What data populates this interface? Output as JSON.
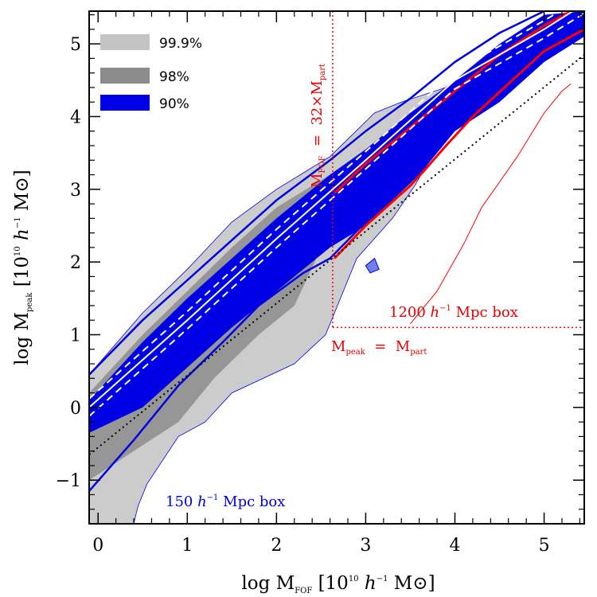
{
  "chart_data": {
    "type": "area",
    "xlabel": {
      "pre": "log M",
      "sub": "FOF",
      "post": " [10",
      "sup": "10",
      "it": "h",
      "sup2": "−1",
      "post2": " M",
      "sym": "⊙",
      "close": "]"
    },
    "ylabel": {
      "pre": "log M",
      "sub": "peak",
      "post": " [10",
      "sup": "10",
      "it": "h",
      "sup2": "−1",
      "post2": " M",
      "sym": "⊙",
      "close": "]"
    },
    "xlim": [
      -0.1,
      5.45
    ],
    "ylim": [
      -1.6,
      5.45
    ],
    "xticks": [
      0,
      1,
      2,
      3,
      4,
      5
    ],
    "yticks": [
      -1,
      0,
      1,
      2,
      3,
      4,
      5
    ],
    "xtick_labels": [
      "0",
      "1",
      "2",
      "3",
      "4",
      "5"
    ],
    "ytick_labels": [
      "−1",
      "0",
      "1",
      "2",
      "3",
      "4",
      "5"
    ],
    "legend": {
      "placement": "top-left",
      "entries": [
        {
          "label": "99.9%",
          "color": "#c4c4c4"
        },
        {
          "label": "98%",
          "color": "#8c8c8c"
        },
        {
          "label": "90%",
          "color": "#0000e6"
        }
      ]
    },
    "colors": {
      "light": "#cccccc",
      "mid": "#969696",
      "blue": "#0000e6",
      "red": "#ff0000",
      "white": "#ffffff"
    },
    "regions": {
      "gray999": [
        [
          -0.1,
          0.45
        ],
        [
          0.5,
          1.3
        ],
        [
          1.0,
          1.9
        ],
        [
          1.5,
          2.55
        ],
        [
          2.0,
          3.0
        ],
        [
          2.6,
          3.45
        ],
        [
          3.1,
          4.05
        ],
        [
          3.4,
          4.2
        ],
        [
          3.9,
          4.4
        ],
        [
          4.1,
          4.4
        ],
        [
          4.0,
          4.0
        ],
        [
          3.55,
          3.05
        ],
        [
          3.3,
          2.6
        ],
        [
          2.9,
          2.05
        ],
        [
          2.55,
          1.0
        ],
        [
          2.2,
          0.6
        ],
        [
          1.5,
          0.2
        ],
        [
          1.2,
          -0.2
        ],
        [
          0.9,
          -0.4
        ],
        [
          0.55,
          -1.05
        ],
        [
          0.45,
          -1.35
        ],
        [
          0.4,
          -1.6
        ],
        [
          -0.1,
          -1.6
        ]
      ],
      "gray98": [
        [
          -0.1,
          0.2
        ],
        [
          0.5,
          1.0
        ],
        [
          1.0,
          1.6
        ],
        [
          1.5,
          2.2
        ],
        [
          2.0,
          2.75
        ],
        [
          2.6,
          3.2
        ],
        [
          3.0,
          3.55
        ],
        [
          3.5,
          4.0
        ],
        [
          3.6,
          3.8
        ],
        [
          3.1,
          3.0
        ],
        [
          2.6,
          2.45
        ],
        [
          2.2,
          1.4
        ],
        [
          1.8,
          1.0
        ],
        [
          1.3,
          0.4
        ],
        [
          0.9,
          -0.2
        ],
        [
          0.4,
          -0.6
        ],
        [
          -0.1,
          -1.0
        ]
      ],
      "blue90": [
        [
          -0.1,
          0.1
        ],
        [
          0.5,
          0.9
        ],
        [
          1.0,
          1.5
        ],
        [
          1.5,
          2.05
        ],
        [
          2.0,
          2.6
        ],
        [
          2.6,
          3.2
        ],
        [
          3.0,
          3.55
        ],
        [
          3.5,
          4.05
        ],
        [
          4.0,
          4.5
        ],
        [
          4.5,
          5.0
        ],
        [
          5.0,
          5.4
        ],
        [
          5.45,
          5.45
        ],
        [
          5.45,
          5.1
        ],
        [
          5.0,
          4.75
        ],
        [
          4.5,
          4.2
        ],
        [
          4.0,
          3.8
        ],
        [
          3.6,
          3.2
        ],
        [
          3.0,
          2.5
        ],
        [
          2.6,
          2.2
        ],
        [
          2.0,
          1.6
        ],
        [
          1.5,
          1.1
        ],
        [
          1.0,
          0.55
        ],
        [
          0.5,
          0.0
        ],
        [
          -0.1,
          -0.35
        ]
      ],
      "blue_outline_upper": [
        [
          -0.1,
          0.45
        ],
        [
          0.5,
          1.2
        ],
        [
          1.0,
          1.75
        ],
        [
          1.5,
          2.3
        ],
        [
          2.0,
          2.85
        ],
        [
          2.6,
          3.4
        ],
        [
          3.0,
          3.8
        ],
        [
          3.5,
          4.25
        ],
        [
          4.0,
          4.75
        ],
        [
          4.5,
          5.15
        ],
        [
          5.0,
          5.45
        ]
      ],
      "blue_outline_lower": [
        [
          -0.1,
          -1.15
        ],
        [
          0.4,
          -0.45
        ],
        [
          0.9,
          0.3
        ],
        [
          1.4,
          0.9
        ],
        [
          1.8,
          1.4
        ],
        [
          2.3,
          1.85
        ],
        [
          2.6,
          2.05
        ],
        [
          3.0,
          2.55
        ],
        [
          3.5,
          3.1
        ],
        [
          3.7,
          3.6
        ],
        [
          4.0,
          3.85
        ],
        [
          4.5,
          4.35
        ],
        [
          5.0,
          4.85
        ]
      ],
      "blue_island": [
        [
          3.0,
          1.95
        ],
        [
          3.1,
          2.05
        ],
        [
          3.15,
          1.9
        ],
        [
          3.05,
          1.85
        ]
      ],
      "red90": [
        [
          2.65,
          2.05
        ],
        [
          3.0,
          2.5
        ],
        [
          3.5,
          3.05
        ],
        [
          3.65,
          3.25
        ],
        [
          3.9,
          3.6
        ],
        [
          4.2,
          4.0
        ],
        [
          4.6,
          4.45
        ],
        [
          5.0,
          4.9
        ],
        [
          5.45,
          5.2
        ]
      ],
      "red90_upper": [
        [
          2.65,
          2.95
        ],
        [
          3.0,
          3.35
        ],
        [
          3.5,
          3.85
        ],
        [
          4.0,
          4.35
        ],
        [
          4.5,
          4.85
        ],
        [
          5.0,
          5.25
        ],
        [
          5.3,
          5.45
        ]
      ],
      "red_thin": [
        [
          3.5,
          1.15
        ],
        [
          3.8,
          1.6
        ],
        [
          4.1,
          2.25
        ],
        [
          4.3,
          2.75
        ],
        [
          4.5,
          3.1
        ],
        [
          4.7,
          3.45
        ],
        [
          4.9,
          3.85
        ],
        [
          5.0,
          4.05
        ],
        [
          5.2,
          4.35
        ],
        [
          5.3,
          4.45
        ]
      ],
      "median": [
        [
          -0.1,
          0.0
        ],
        [
          1.0,
          1.2
        ],
        [
          2.0,
          2.32
        ],
        [
          3.0,
          3.4
        ],
        [
          4.0,
          4.5
        ],
        [
          5.0,
          5.2
        ],
        [
          5.45,
          5.55
        ]
      ],
      "dashed_upper": [
        [
          -0.1,
          0.12
        ],
        [
          1.0,
          1.32
        ],
        [
          2.0,
          2.45
        ],
        [
          3.0,
          3.52
        ],
        [
          4.0,
          4.62
        ],
        [
          5.0,
          5.32
        ],
        [
          5.45,
          5.65
        ]
      ],
      "dashed_lower": [
        [
          -0.1,
          -0.12
        ],
        [
          1.0,
          1.08
        ],
        [
          2.0,
          2.2
        ],
        [
          3.0,
          3.28
        ],
        [
          4.0,
          4.38
        ],
        [
          5.0,
          5.08
        ],
        [
          5.45,
          5.42
        ]
      ],
      "one_to_one": [
        [
          -0.1,
          -0.65
        ],
        [
          5.45,
          4.85
        ]
      ]
    },
    "threshold_lines": {
      "x": 2.63,
      "y": 1.1
    },
    "annotations": {
      "mfof_threshold": {
        "pre": "M",
        "sub": "FOF",
        "mid": "  =  32×M",
        "sub2": "part"
      },
      "mpeak_threshold": {
        "pre": "M",
        "sub": "peak",
        "mid": "  =  M",
        "sub2": "part"
      },
      "box_large": {
        "pre": "1200 ",
        "it": "h",
        "sup": "−1",
        "post": " Mpc box"
      },
      "box_small": {
        "pre": "150 ",
        "it": "h",
        "sup": "−1",
        "post": " Mpc box"
      }
    }
  }
}
